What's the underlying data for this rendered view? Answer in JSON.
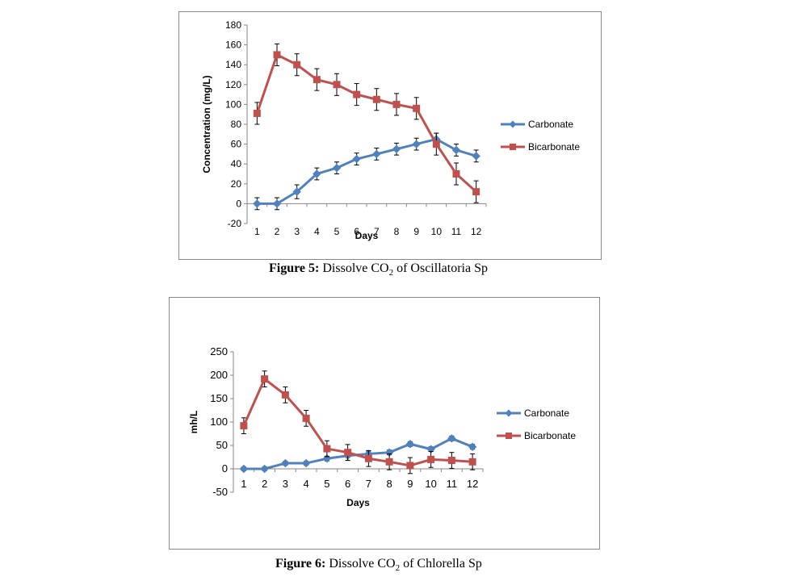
{
  "colors": {
    "carbonate": "#4F81BD",
    "bicarbonate": "#C0504D",
    "axis": "#868686",
    "text": "#000000",
    "errorbar": "#000000"
  },
  "figures": [
    {
      "caption": {
        "label": "Figure 5:",
        "text_before": " Dissolve CO",
        "subscript": "2",
        "text_after": " of Oscillatoria Sp"
      }
    },
    {
      "caption": {
        "label": "Figure 6:",
        "text_before": " Dissolve CO",
        "subscript": "2",
        "text_after": " of Chlorella Sp"
      }
    }
  ],
  "chart_data": [
    {
      "type": "line",
      "xlabel": "Days",
      "ylabel": "Concentration (mg/L)",
      "ylim": [
        -20,
        180
      ],
      "yticks": [
        -20,
        0,
        20,
        40,
        60,
        80,
        100,
        120,
        140,
        160,
        180
      ],
      "categories": [
        "1",
        "2",
        "3",
        "4",
        "5",
        "6",
        "7",
        "8",
        "9",
        "10",
        "11",
        "12"
      ],
      "legend_position": "right",
      "series": [
        {
          "name": "Carbonate",
          "marker": "diamond",
          "color": "#4F81BD",
          "values": [
            0,
            0,
            12,
            30,
            36,
            45,
            50,
            55,
            60,
            65,
            54,
            48
          ],
          "error": [
            6,
            6,
            7,
            6,
            6,
            6,
            6,
            6,
            6,
            6,
            6,
            6
          ]
        },
        {
          "name": "Bicarbonate",
          "marker": "square",
          "color": "#C0504D",
          "values": [
            91,
            150,
            140,
            125,
            120,
            110,
            105,
            100,
            96,
            60,
            30,
            12
          ],
          "error": [
            11,
            11,
            11,
            11,
            11,
            11,
            11,
            11,
            11,
            11,
            11,
            11
          ]
        }
      ]
    },
    {
      "type": "line",
      "xlabel": "Days",
      "ylabel": "mh/L",
      "ylim": [
        -50,
        250
      ],
      "yticks": [
        -50,
        0,
        50,
        100,
        150,
        200,
        250
      ],
      "categories": [
        "1",
        "2",
        "3",
        "4",
        "5",
        "6",
        "7",
        "8",
        "9",
        "10",
        "11",
        "12"
      ],
      "legend_position": "right",
      "series": [
        {
          "name": "Carbonate",
          "marker": "diamond",
          "color": "#4F81BD",
          "values": [
            0,
            0,
            12,
            12,
            22,
            28,
            32,
            35,
            53,
            42,
            65,
            47
          ],
          "error": [
            4,
            4,
            4,
            4,
            5,
            10,
            6,
            5,
            5,
            5,
            5,
            5
          ]
        },
        {
          "name": "Bicarbonate",
          "marker": "square",
          "color": "#C0504D",
          "values": [
            92,
            192,
            158,
            108,
            43,
            35,
            22,
            15,
            7,
            20,
            18,
            15
          ],
          "error": [
            17,
            17,
            17,
            17,
            17,
            17,
            17,
            17,
            17,
            17,
            17,
            17
          ]
        }
      ]
    }
  ]
}
